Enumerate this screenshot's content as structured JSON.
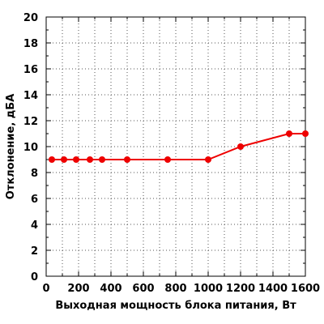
{
  "chart_data": {
    "type": "line",
    "title": "",
    "xlabel": "Выходная мощность блока питания, Вт",
    "ylabel": "Отклонение, дБА",
    "xlim": [
      0,
      1600
    ],
    "ylim": [
      0,
      20
    ],
    "x_ticks": [
      0,
      200,
      400,
      600,
      800,
      1000,
      1200,
      1400,
      1600
    ],
    "y_ticks": [
      0,
      2,
      4,
      6,
      8,
      10,
      12,
      14,
      16,
      18,
      20
    ],
    "grid": true,
    "legend": "none",
    "series": [
      {
        "color": "#ee0000",
        "x": [
          35,
          110,
          185,
          270,
          345,
          500,
          750,
          1000,
          1200,
          1500,
          1600
        ],
        "y": [
          9,
          9,
          9,
          9,
          9,
          9,
          9,
          9,
          10,
          11,
          11
        ]
      }
    ]
  }
}
